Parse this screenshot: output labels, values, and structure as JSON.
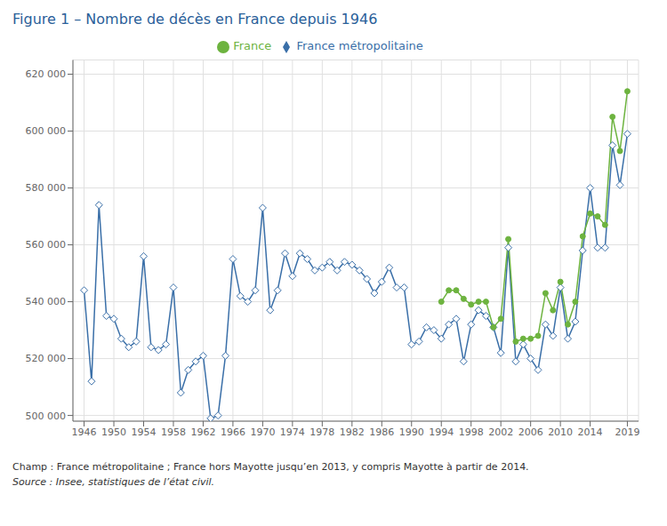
{
  "chart_data": {
    "type": "line",
    "title": "Figure 1 – Nombre de décès en France depuis 1946",
    "annotations": [
      "Champ : France métropolitaine ; France hors Mayotte jusqu’en 2013, y compris Mayotte à partir de 2014.",
      "Source : Insee, statistiques de l’état civil."
    ],
    "x": [
      1946,
      1947,
      1948,
      1949,
      1950,
      1951,
      1952,
      1953,
      1954,
      1955,
      1956,
      1957,
      1958,
      1959,
      1960,
      1961,
      1962,
      1963,
      1964,
      1965,
      1966,
      1967,
      1968,
      1969,
      1970,
      1971,
      1972,
      1973,
      1974,
      1975,
      1976,
      1977,
      1978,
      1979,
      1980,
      1981,
      1982,
      1983,
      1984,
      1985,
      1986,
      1987,
      1988,
      1989,
      1990,
      1991,
      1992,
      1993,
      1994,
      1995,
      1996,
      1997,
      1998,
      1999,
      2000,
      2001,
      2002,
      2003,
      2004,
      2005,
      2006,
      2007,
      2008,
      2009,
      2010,
      2011,
      2012,
      2013,
      2014,
      2015,
      2016,
      2017,
      2018,
      2019
    ],
    "series": [
      {
        "name": "France métropolitaine",
        "color": "#3a6fa8",
        "marker": "diamond",
        "values": [
          544000,
          512000,
          574000,
          535000,
          534000,
          527000,
          524000,
          526000,
          556000,
          524000,
          523000,
          525000,
          545000,
          508000,
          516000,
          519000,
          521000,
          499000,
          500000,
          521000,
          555000,
          542000,
          540000,
          544000,
          573000,
          537000,
          544000,
          557000,
          549000,
          557000,
          555000,
          551000,
          552000,
          554000,
          551000,
          554000,
          553000,
          551000,
          548000,
          543000,
          547000,
          552000,
          545000,
          545000,
          525000,
          526000,
          531000,
          530000,
          527000,
          532000,
          534000,
          519000,
          532000,
          537000,
          535000,
          531000,
          522000,
          559000,
          519000,
          525000,
          520000,
          516000,
          532000,
          528000,
          545000,
          527000,
          533000,
          558000,
          580000,
          559000,
          559000,
          595000,
          581000,
          599000
        ]
      },
      {
        "name": "France",
        "color": "#6db33f",
        "marker": "circle",
        "values": [
          null,
          null,
          null,
          null,
          null,
          null,
          null,
          null,
          null,
          null,
          null,
          null,
          null,
          null,
          null,
          null,
          null,
          null,
          null,
          null,
          null,
          null,
          null,
          null,
          null,
          null,
          null,
          null,
          null,
          null,
          null,
          null,
          null,
          null,
          null,
          null,
          null,
          null,
          null,
          null,
          null,
          null,
          null,
          null,
          null,
          null,
          null,
          null,
          540000,
          544000,
          544000,
          541000,
          539000,
          540000,
          540000,
          531000,
          534000,
          562000,
          526000,
          527000,
          527000,
          528000,
          543000,
          537000,
          547000,
          532000,
          540000,
          563000,
          571000,
          570000,
          567000,
          605000,
          593000,
          614000
        ]
      }
    ],
    "xlim": [
      1944.5,
      2020.5
    ],
    "xticks": [
      1946,
      1950,
      1954,
      1958,
      1962,
      1966,
      1970,
      1974,
      1978,
      1982,
      1986,
      1990,
      1994,
      1998,
      2002,
      2006,
      2010,
      2014,
      2019
    ],
    "ylim": [
      498000,
      625000
    ],
    "yticks": [
      {
        "value": 500000,
        "label": "500 000"
      },
      {
        "value": 520000,
        "label": "520 000"
      },
      {
        "value": 540000,
        "label": "540 000"
      },
      {
        "value": 560000,
        "label": "560 000"
      },
      {
        "value": 580000,
        "label": "580 000"
      },
      {
        "value": 600000,
        "label": "600 000"
      },
      {
        "value": 620000,
        "label": "620 000"
      }
    ],
    "grid": true,
    "legend": "top"
  }
}
